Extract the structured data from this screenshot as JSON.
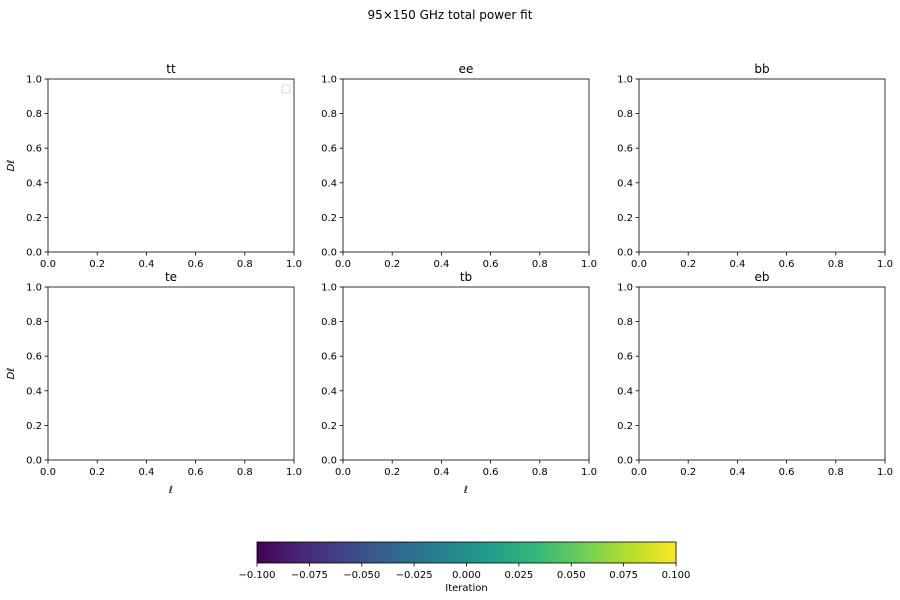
{
  "figure": {
    "suptitle": "95×150 GHz total power fit"
  },
  "chart_data": [
    {
      "type": "line",
      "title": "tt",
      "xlabel": "",
      "ylabel": "Dℓ",
      "xlim": [
        0,
        1
      ],
      "ylim": [
        0,
        1
      ],
      "xticks": [
        "0.0",
        "0.2",
        "0.4",
        "0.6",
        "0.8",
        "1.0"
      ],
      "yticks": [
        "0.0",
        "0.2",
        "0.4",
        "0.6",
        "0.8",
        "1.0"
      ],
      "series": [],
      "legend": "upper right (empty)",
      "grid": false
    },
    {
      "type": "line",
      "title": "ee",
      "xlabel": "",
      "ylabel": "",
      "xlim": [
        0,
        1
      ],
      "ylim": [
        0,
        1
      ],
      "xticks": [
        "0.0",
        "0.2",
        "0.4",
        "0.6",
        "0.8",
        "1.0"
      ],
      "yticks": [
        "0.0",
        "0.2",
        "0.4",
        "0.6",
        "0.8",
        "1.0"
      ],
      "series": [],
      "grid": false
    },
    {
      "type": "line",
      "title": "bb",
      "xlabel": "",
      "ylabel": "",
      "xlim": [
        0,
        1
      ],
      "ylim": [
        0,
        1
      ],
      "xticks": [
        "0.0",
        "0.2",
        "0.4",
        "0.6",
        "0.8",
        "1.0"
      ],
      "yticks": [
        "0.0",
        "0.2",
        "0.4",
        "0.6",
        "0.8",
        "1.0"
      ],
      "series": [],
      "grid": false
    },
    {
      "type": "line",
      "title": "te",
      "xlabel": "ℓ",
      "ylabel": "Dℓ",
      "xlim": [
        0,
        1
      ],
      "ylim": [
        0,
        1
      ],
      "xticks": [
        "0.0",
        "0.2",
        "0.4",
        "0.6",
        "0.8",
        "1.0"
      ],
      "yticks": [
        "0.0",
        "0.2",
        "0.4",
        "0.6",
        "0.8",
        "1.0"
      ],
      "series": [],
      "grid": false
    },
    {
      "type": "line",
      "title": "tb",
      "xlabel": "ℓ",
      "ylabel": "",
      "xlim": [
        0,
        1
      ],
      "ylim": [
        0,
        1
      ],
      "xticks": [
        "0.0",
        "0.2",
        "0.4",
        "0.6",
        "0.8",
        "1.0"
      ],
      "yticks": [
        "0.0",
        "0.2",
        "0.4",
        "0.6",
        "0.8",
        "1.0"
      ],
      "series": [],
      "grid": false
    },
    {
      "type": "line",
      "title": "eb",
      "xlabel": "",
      "ylabel": "",
      "xlim": [
        0,
        1
      ],
      "ylim": [
        0,
        1
      ],
      "xticks": [
        "0.0",
        "0.2",
        "0.4",
        "0.6",
        "0.8",
        "1.0"
      ],
      "yticks": [
        "0.0",
        "0.2",
        "0.4",
        "0.6",
        "0.8",
        "1.0"
      ],
      "series": [],
      "grid": false
    }
  ],
  "colorbar": {
    "label": "Iteration",
    "colormap": "viridis",
    "range": [
      -0.1,
      0.1
    ],
    "ticks": [
      "−0.100",
      "−0.075",
      "−0.050",
      "−0.025",
      "0.000",
      "0.025",
      "0.050",
      "0.075",
      "0.100"
    ],
    "colors": [
      "#440154",
      "#482878",
      "#3e4989",
      "#31688e",
      "#26828e",
      "#1f9e89",
      "#35b779",
      "#6ece58",
      "#b5de2b",
      "#fde725"
    ]
  }
}
